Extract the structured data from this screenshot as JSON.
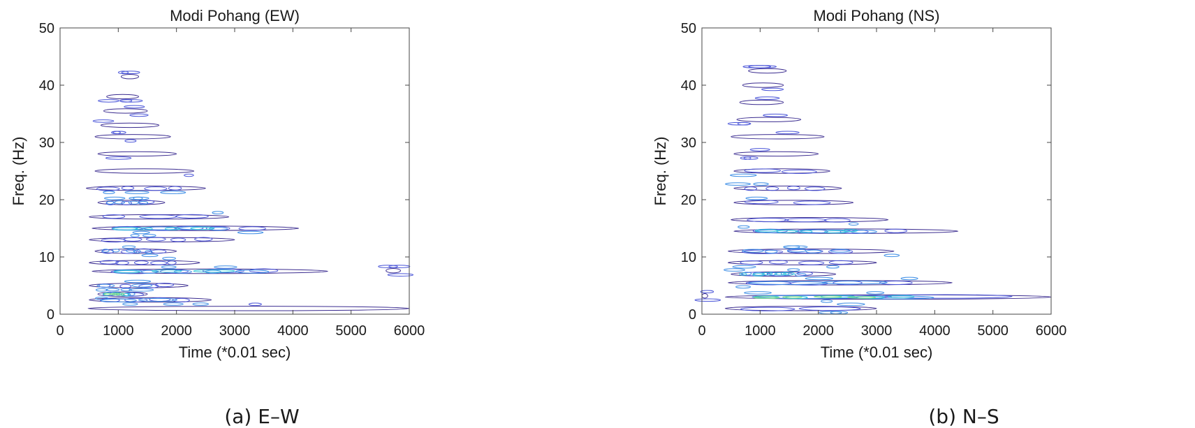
{
  "captions": {
    "ew": "(a) E–W",
    "ns": "(b) N–S"
  },
  "colors": {
    "axis": "#444444",
    "contour_levels": [
      "#3a2b8f",
      "#4a55d8",
      "#3f8fe6",
      "#37c7d9",
      "#7fdc8a",
      "#e8e04a"
    ]
  },
  "chart_data": [
    {
      "type": "contour",
      "title": "Modi Pohang (EW)",
      "xlabel": "Time (*0.01 sec)",
      "ylabel": "Freq. (Hz)",
      "xlim": [
        0,
        6000
      ],
      "ylim": [
        0,
        50
      ],
      "xticks": [
        0,
        1000,
        2000,
        3000,
        4000,
        5000,
        6000
      ],
      "yticks": [
        0,
        10,
        20,
        30,
        40,
        50
      ],
      "grid": false,
      "bands": [
        {
          "t_start": 480,
          "t_end": 6000,
          "freq": 1.0,
          "level": 1
        },
        {
          "t_start": 500,
          "t_end": 2600,
          "freq": 2.5,
          "level": 3
        },
        {
          "t_start": 650,
          "t_end": 1500,
          "freq": 3.5,
          "level": 5
        },
        {
          "t_start": 500,
          "t_end": 2200,
          "freq": 5.0,
          "level": 3
        },
        {
          "t_start": 550,
          "t_end": 4600,
          "freq": 7.5,
          "level": 4
        },
        {
          "t_start": 5600,
          "t_end": 5850,
          "freq": 7.6,
          "level": 1
        },
        {
          "t_start": 500,
          "t_end": 2400,
          "freq": 9.0,
          "level": 2
        },
        {
          "t_start": 600,
          "t_end": 2000,
          "freq": 11.0,
          "level": 3
        },
        {
          "t_start": 500,
          "t_end": 3000,
          "freq": 13.0,
          "level": 2
        },
        {
          "t_start": 550,
          "t_end": 4100,
          "freq": 15.0,
          "level": 4
        },
        {
          "t_start": 500,
          "t_end": 2900,
          "freq": 17.0,
          "level": 2
        },
        {
          "t_start": 650,
          "t_end": 1800,
          "freq": 19.5,
          "level": 3
        },
        {
          "t_start": 450,
          "t_end": 2500,
          "freq": 22.0,
          "level": 2
        },
        {
          "t_start": 600,
          "t_end": 2300,
          "freq": 25.0,
          "level": 1
        },
        {
          "t_start": 650,
          "t_end": 2000,
          "freq": 28.0,
          "level": 1
        },
        {
          "t_start": 600,
          "t_end": 1900,
          "freq": 31.0,
          "level": 1
        },
        {
          "t_start": 700,
          "t_end": 1700,
          "freq": 33.0,
          "level": 1
        },
        {
          "t_start": 750,
          "t_end": 1500,
          "freq": 35.5,
          "level": 1
        },
        {
          "t_start": 800,
          "t_end": 1350,
          "freq": 38.0,
          "level": 1
        },
        {
          "t_start": 1050,
          "t_end": 1350,
          "freq": 41.5,
          "level": 1
        }
      ]
    },
    {
      "type": "contour",
      "title": "Modi Pohang (NS)",
      "xlabel": "Time (*0.01 sec)",
      "ylabel": "Freq. (Hz)",
      "xlim": [
        0,
        6000
      ],
      "ylim": [
        0,
        50
      ],
      "xticks": [
        0,
        1000,
        2000,
        3000,
        4000,
        5000,
        6000
      ],
      "yticks": [
        0,
        10,
        20,
        30,
        40,
        50
      ],
      "grid": false,
      "bands": [
        {
          "t_start": 400,
          "t_end": 3000,
          "freq": 1.0,
          "level": 2
        },
        {
          "t_start": 400,
          "t_end": 6000,
          "freq": 3.0,
          "level": 5
        },
        {
          "t_start": 0,
          "t_end": 100,
          "freq": 3.2,
          "level": 1
        },
        {
          "t_start": 450,
          "t_end": 4300,
          "freq": 5.5,
          "level": 3
        },
        {
          "t_start": 500,
          "t_end": 2300,
          "freq": 7.0,
          "level": 4
        },
        {
          "t_start": 450,
          "t_end": 3000,
          "freq": 9.0,
          "level": 2
        },
        {
          "t_start": 450,
          "t_end": 3300,
          "freq": 11.0,
          "level": 3
        },
        {
          "t_start": 550,
          "t_end": 4400,
          "freq": 14.5,
          "level": 4
        },
        {
          "t_start": 500,
          "t_end": 3200,
          "freq": 16.5,
          "level": 2
        },
        {
          "t_start": 550,
          "t_end": 2600,
          "freq": 19.5,
          "level": 2
        },
        {
          "t_start": 550,
          "t_end": 2400,
          "freq": 22.0,
          "level": 2
        },
        {
          "t_start": 550,
          "t_end": 2200,
          "freq": 25.0,
          "level": 2
        },
        {
          "t_start": 550,
          "t_end": 2000,
          "freq": 28.0,
          "level": 1
        },
        {
          "t_start": 500,
          "t_end": 2100,
          "freq": 31.0,
          "level": 1
        },
        {
          "t_start": 600,
          "t_end": 1700,
          "freq": 34.0,
          "level": 1
        },
        {
          "t_start": 650,
          "t_end": 1400,
          "freq": 37.0,
          "level": 1
        },
        {
          "t_start": 700,
          "t_end": 1400,
          "freq": 40.0,
          "level": 1
        },
        {
          "t_start": 800,
          "t_end": 1450,
          "freq": 42.5,
          "level": 1
        }
      ]
    }
  ]
}
